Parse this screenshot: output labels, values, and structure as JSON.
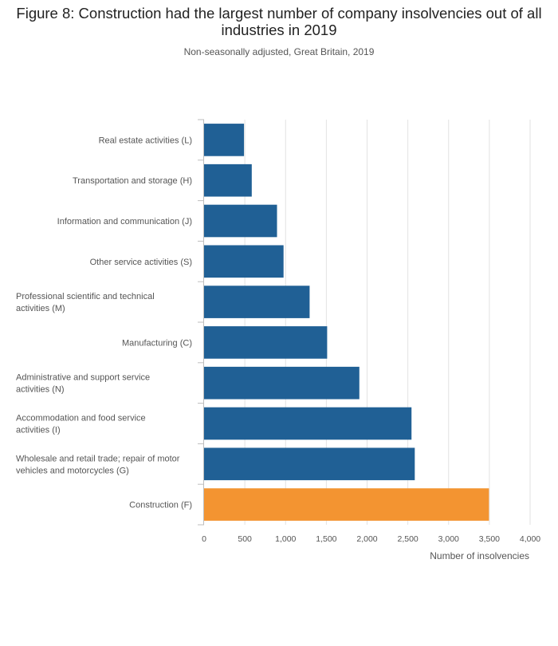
{
  "chart_data": {
    "type": "bar",
    "orientation": "horizontal",
    "title": "Figure 8: Construction had the largest number of company insolvencies out of all industries in 2019",
    "subtitle": "Non-seasonally adjusted, Great Britain, 2019",
    "xlabel": "Number of insolvencies",
    "ylabel": "",
    "xlim": [
      0,
      4000
    ],
    "xticks": [
      0,
      500,
      1000,
      1500,
      2000,
      2500,
      3000,
      3500,
      4000
    ],
    "xtick_labels": [
      "0",
      "500",
      "1,000",
      "1,500",
      "2,000",
      "2,500",
      "3,000",
      "3,500",
      "4,000"
    ],
    "categories": [
      [
        "Real estate activities (L)"
      ],
      [
        "Transportation and storage (H)"
      ],
      [
        "Information and communication (J)"
      ],
      [
        "Other service activities (S)"
      ],
      [
        "Professional scientific and technical",
        "activities (M)"
      ],
      [
        "Manufacturing (C)"
      ],
      [
        "Administrative and support service",
        "activities (N)"
      ],
      [
        "Accommodation and food service",
        "activities (I)"
      ],
      [
        "Wholesale and retail trade; repair of motor",
        "vehicles and motorcycles (G)"
      ],
      [
        "Construction (F)"
      ]
    ],
    "values": [
      490,
      585,
      895,
      975,
      1295,
      1510,
      1905,
      2545,
      2585,
      3495
    ],
    "highlight_index": 9,
    "grid": true
  },
  "colors": {
    "bar": "#206095",
    "highlight": "#f39431",
    "grid": "#e2e2e2",
    "axis": "#bebebe"
  }
}
